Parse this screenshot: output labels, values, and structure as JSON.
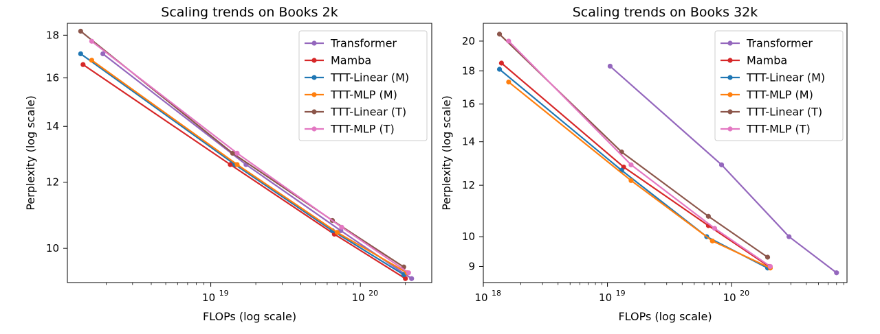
{
  "charts": [
    {
      "title": "Scaling trends on Books 2k",
      "xlabel": "FLOPs (log scale)",
      "ylabel": "Perplexity (log scale)",
      "x_ticks": [
        "10",
        "10"
      ],
      "x_tick_exponents": [
        "19",
        "20"
      ],
      "y_ticks": [
        "10",
        "12",
        "14",
        "16",
        "18"
      ]
    },
    {
      "title": "Scaling trends on Books 32k",
      "xlabel": "FLOPs (log scale)",
      "ylabel": "Perplexity (log scale)",
      "x_ticks": [
        "10",
        "10",
        "10"
      ],
      "x_tick_exponents": [
        "18",
        "19",
        "20"
      ],
      "y_ticks": [
        "9",
        "10",
        "12",
        "14",
        "16",
        "18",
        "20"
      ]
    }
  ],
  "chart_data": [
    {
      "type": "line",
      "title": "Scaling trends on Books 2k",
      "xlabel": "FLOPs (log scale)",
      "ylabel": "Perplexity (log scale)",
      "xscale": "log",
      "yscale": "log",
      "xlim": [
        1.1e+18,
        3e+20
      ],
      "ylim": [
        9.1,
        18.6
      ],
      "legend": "top-right",
      "grid": false,
      "series": [
        {
          "name": "Transformer",
          "color": "#9467bd",
          "x": [
            1.9e+18,
            1.72e+19,
            7.4e+19,
            2.2e+20
          ],
          "y": [
            17.1,
            12.6,
            10.5,
            9.2
          ]
        },
        {
          "name": "Mamba",
          "color": "#d62728",
          "x": [
            1.4e+18,
            1.35e+19,
            6.7e+19,
            2e+20
          ],
          "y": [
            16.6,
            12.6,
            10.4,
            9.2
          ]
        },
        {
          "name": "TTT-Linear (M)",
          "color": "#1f77b4",
          "x": [
            1.35e+18,
            1.45e+19,
            6.5e+19,
            1.95e+20
          ],
          "y": [
            17.1,
            12.6,
            10.5,
            9.3
          ]
        },
        {
          "name": "TTT-MLP (M)",
          "color": "#ff7f0e",
          "x": [
            1.6e+18,
            1.5e+19,
            7e+19,
            2.05e+20
          ],
          "y": [
            16.8,
            12.6,
            10.45,
            9.35
          ]
        },
        {
          "name": "TTT-Linear (T)",
          "color": "#8c564b",
          "x": [
            1.35e+18,
            1.4e+19,
            6.5e+19,
            1.95e+20
          ],
          "y": [
            18.2,
            13.0,
            10.8,
            9.5
          ]
        },
        {
          "name": "TTT-MLP (T)",
          "color": "#e377c2",
          "x": [
            1.6e+18,
            1.5e+19,
            7.5e+19,
            2.1e+20
          ],
          "y": [
            17.7,
            13.0,
            10.6,
            9.35
          ]
        }
      ]
    },
    {
      "type": "line",
      "title": "Scaling trends on Books 32k",
      "xlabel": "FLOPs (log scale)",
      "ylabel": "Perplexity (log scale)",
      "xscale": "log",
      "yscale": "log",
      "xlim": [
        1e+18,
        8.5e+20
      ],
      "ylim": [
        8.5,
        21.3
      ],
      "legend": "top-right",
      "grid": false,
      "series": [
        {
          "name": "Transformer",
          "color": "#9467bd",
          "x": [
            1.05e+19,
            8.3e+19,
            2.9e+20,
            7e+20
          ],
          "y": [
            18.3,
            12.9,
            10.0,
            8.8
          ]
        },
        {
          "name": "Mamba",
          "color": "#d62728",
          "x": [
            1.4e+18,
            1.35e+19,
            6.5e+19,
            2e+20
          ],
          "y": [
            18.5,
            12.8,
            10.4,
            9.0
          ]
        },
        {
          "name": "TTT-Linear (M)",
          "color": "#1f77b4",
          "x": [
            1.35e+18,
            1.3e+19,
            6.3e+19,
            1.95e+20
          ],
          "y": [
            18.1,
            12.65,
            10.0,
            8.95
          ]
        },
        {
          "name": "TTT-MLP (M)",
          "color": "#ff7f0e",
          "x": [
            1.6e+18,
            1.55e+19,
            7e+19,
            2.05e+20
          ],
          "y": [
            17.3,
            12.2,
            9.85,
            8.95
          ]
        },
        {
          "name": "TTT-Linear (T)",
          "color": "#8c564b",
          "x": [
            1.35e+18,
            1.3e+19,
            6.5e+19,
            1.95e+20
          ],
          "y": [
            20.5,
            13.5,
            10.75,
            9.3
          ]
        },
        {
          "name": "TTT-MLP (T)",
          "color": "#e377c2",
          "x": [
            1.6e+18,
            1.55e+19,
            7.3e+19,
            2.05e+20
          ],
          "y": [
            20.0,
            12.9,
            10.3,
            9.0
          ]
        }
      ]
    }
  ]
}
